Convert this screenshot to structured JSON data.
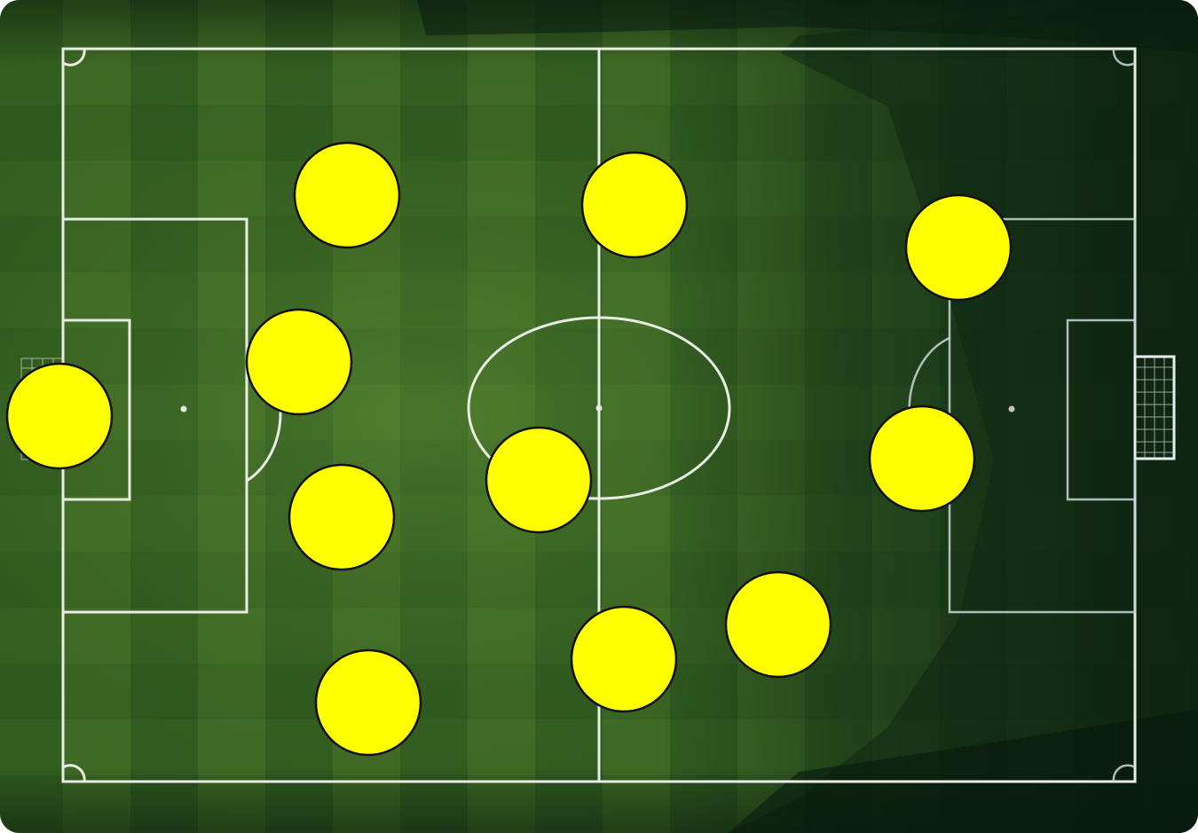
{
  "board": {
    "colors": {
      "grass_light": "#4c7a2c",
      "grass_dark": "#2f5a1f",
      "shadow": "#0c2613",
      "lines": "#e8ede4",
      "token_fill": "#ffff00",
      "token_stroke": "#111111"
    }
  },
  "tokens": [
    {
      "id": "token-1"
    },
    {
      "id": "token-2"
    },
    {
      "id": "token-3"
    },
    {
      "id": "token-4"
    },
    {
      "id": "token-5"
    },
    {
      "id": "token-6"
    },
    {
      "id": "token-7"
    },
    {
      "id": "token-8"
    },
    {
      "id": "token-9"
    },
    {
      "id": "token-10"
    },
    {
      "id": "token-11"
    }
  ]
}
